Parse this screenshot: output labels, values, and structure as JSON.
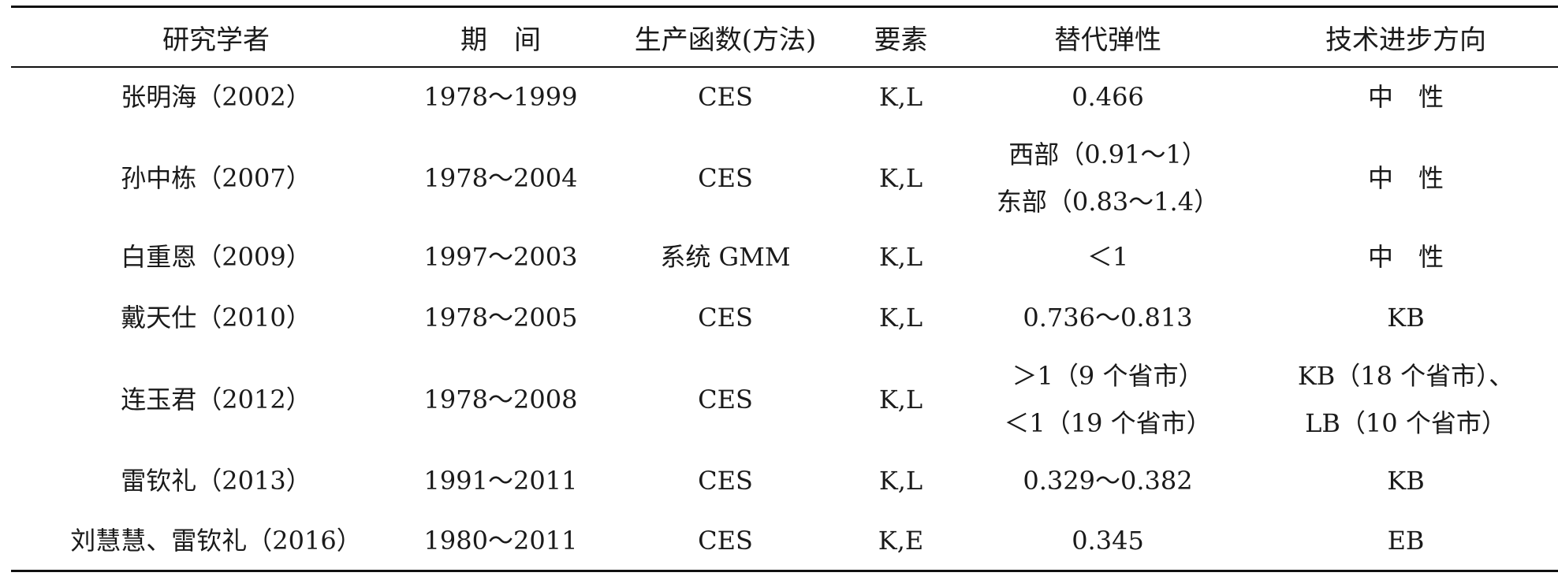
{
  "table": {
    "headers": [
      "研究学者",
      "期　间",
      "生产函数(方法)",
      "要素",
      "替代弹性",
      "技术进步方向"
    ],
    "rows": [
      {
        "scholar": "张明海（2002）",
        "period": "1978～1999",
        "method": "CES",
        "factors": "K,L",
        "elasticity": [
          "0.466"
        ],
        "direction": [
          "中　性"
        ]
      },
      {
        "scholar": "孙中栋（2007）",
        "period": "1978～2004",
        "method": "CES",
        "factors": "K,L",
        "elasticity": [
          "西部（0.91～1）",
          "东部（0.83～1.4）"
        ],
        "direction": [
          "中　性"
        ]
      },
      {
        "scholar": "白重恩（2009）",
        "period": "1997～2003",
        "method": "系统 GMM",
        "factors": "K,L",
        "elasticity": [
          "＜1"
        ],
        "direction": [
          "中　性"
        ]
      },
      {
        "scholar": "戴天仕（2010）",
        "period": "1978～2005",
        "method": "CES",
        "factors": "K,L",
        "elasticity": [
          "0.736～0.813"
        ],
        "direction": [
          "KB"
        ]
      },
      {
        "scholar": "连玉君（2012）",
        "period": "1978～2008",
        "method": "CES",
        "factors": "K,L",
        "elasticity": [
          "＞1（9 个省市）",
          "＜1（19 个省市）"
        ],
        "direction": [
          "KB（18 个省市）、",
          "LB（10 个省市）"
        ]
      },
      {
        "scholar": "雷钦礼（2013）",
        "period": "1991～2011",
        "method": "CES",
        "factors": "K,L",
        "elasticity": [
          "0.329～0.382"
        ],
        "direction": [
          "KB"
        ]
      },
      {
        "scholar": "刘慧慧、雷钦礼（2016）",
        "period": "1980～2011",
        "method": "CES",
        "factors": "K,E",
        "elasticity": [
          "0.345"
        ],
        "direction": [
          "EB"
        ]
      }
    ]
  }
}
